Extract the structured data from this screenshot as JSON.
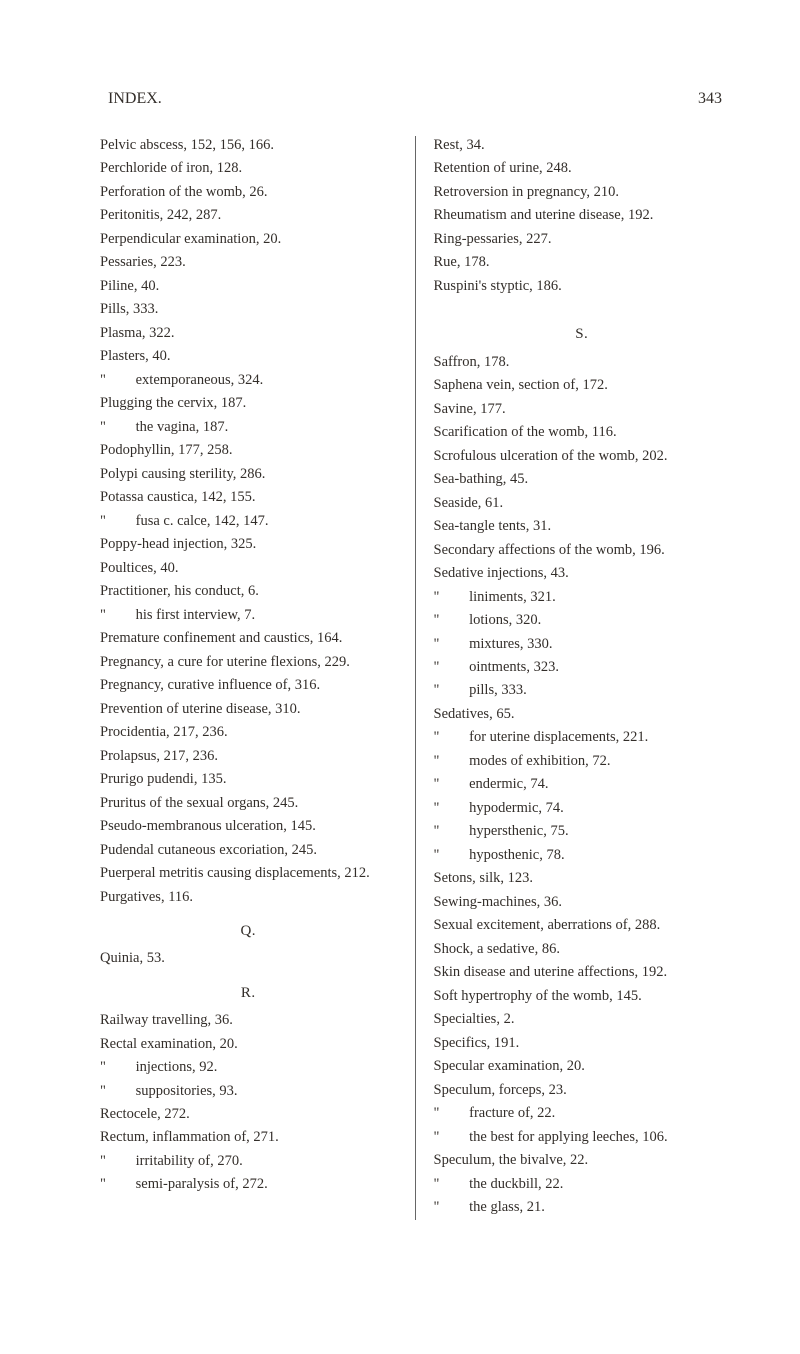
{
  "header": {
    "title": "INDEX.",
    "page_number": "343"
  },
  "columns": {
    "left": [
      {
        "type": "entry",
        "text": "Pelvic abscess, 152, 156, 166."
      },
      {
        "type": "entry",
        "text": "Perchloride of iron, 128."
      },
      {
        "type": "entry",
        "text": "Perforation of the womb, 26."
      },
      {
        "type": "entry",
        "text": "Peritonitis, 242, 287."
      },
      {
        "type": "entry",
        "text": "Perpendicular examination, 20."
      },
      {
        "type": "entry",
        "text": "Pessaries, 223."
      },
      {
        "type": "entry",
        "text": "Piline, 40."
      },
      {
        "type": "entry",
        "text": "Pills, 333."
      },
      {
        "type": "entry",
        "text": "Plasma, 322."
      },
      {
        "type": "entry",
        "text": "Plasters, 40."
      },
      {
        "type": "sub",
        "text": "extemporaneous, 324."
      },
      {
        "type": "entry",
        "text": "Plugging the cervix, 187."
      },
      {
        "type": "sub",
        "text": "the vagina, 187."
      },
      {
        "type": "entry",
        "text": "Podophyllin, 177, 258."
      },
      {
        "type": "entry",
        "text": "Polypi causing sterility, 286."
      },
      {
        "type": "entry",
        "text": "Potassa caustica, 142, 155."
      },
      {
        "type": "sub",
        "text": "fusa c. calce, 142, 147."
      },
      {
        "type": "entry",
        "text": "Poppy-head injection, 325."
      },
      {
        "type": "entry",
        "text": "Poultices, 40."
      },
      {
        "type": "entry",
        "text": "Practitioner, his conduct, 6."
      },
      {
        "type": "sub",
        "text": "his first interview, 7."
      },
      {
        "type": "entry",
        "text": "Premature confinement and caustics, 164."
      },
      {
        "type": "entry",
        "text": "Pregnancy, a cure for uterine flexions, 229."
      },
      {
        "type": "entry",
        "text": "Pregnancy, curative influence of, 316."
      },
      {
        "type": "entry",
        "text": "Prevention of uterine disease, 310."
      },
      {
        "type": "entry",
        "text": "Procidentia, 217, 236."
      },
      {
        "type": "entry",
        "text": "Prolapsus, 217, 236."
      },
      {
        "type": "entry",
        "text": "Prurigo pudendi, 135."
      },
      {
        "type": "entry",
        "text": "Pruritus of the sexual organs, 245."
      },
      {
        "type": "entry",
        "text": "Pseudo-membranous ulceration, 145."
      },
      {
        "type": "entry",
        "text": "Pudendal cutaneous excoriation, 245."
      },
      {
        "type": "entry",
        "text": "Puerperal metritis causing displacements, 212."
      },
      {
        "type": "entry",
        "text": "Purgatives, 116."
      },
      {
        "type": "section",
        "text": "Q."
      },
      {
        "type": "entry",
        "text": "Quinia, 53."
      },
      {
        "type": "section",
        "text": "R."
      },
      {
        "type": "entry",
        "text": "Railway travelling, 36."
      },
      {
        "type": "entry",
        "text": "Rectal examination, 20."
      },
      {
        "type": "sub",
        "text": "injections, 92."
      },
      {
        "type": "sub",
        "text": "suppositories, 93."
      },
      {
        "type": "entry",
        "text": "Rectocele, 272."
      },
      {
        "type": "entry",
        "text": "Rectum, inflammation of, 271."
      },
      {
        "type": "sub",
        "text": "irritability of, 270."
      },
      {
        "type": "sub",
        "text": "semi-paralysis of, 272."
      }
    ],
    "right": [
      {
        "type": "entry",
        "text": "Rest, 34."
      },
      {
        "type": "entry",
        "text": "Retention of urine, 248."
      },
      {
        "type": "entry",
        "text": "Retroversion in pregnancy, 210."
      },
      {
        "type": "entry",
        "text": "Rheumatism and uterine disease, 192."
      },
      {
        "type": "entry",
        "text": "Ring-pessaries, 227."
      },
      {
        "type": "entry",
        "text": "Rue, 178."
      },
      {
        "type": "entry",
        "text": "Ruspini's styptic, 186."
      },
      {
        "type": "gap",
        "text": ""
      },
      {
        "type": "section",
        "text": "S."
      },
      {
        "type": "entry",
        "text": "Saffron, 178."
      },
      {
        "type": "entry",
        "text": "Saphena vein, section of, 172."
      },
      {
        "type": "entry",
        "text": "Savine, 177."
      },
      {
        "type": "entry",
        "text": "Scarification of the womb, 116."
      },
      {
        "type": "entry",
        "text": "Scrofulous ulceration of the womb, 202."
      },
      {
        "type": "entry",
        "text": "Sea-bathing, 45."
      },
      {
        "type": "entry",
        "text": "Seaside, 61."
      },
      {
        "type": "entry",
        "text": "Sea-tangle tents, 31."
      },
      {
        "type": "entry",
        "text": "Secondary affections of the womb, 196."
      },
      {
        "type": "entry",
        "text": "Sedative injections, 43."
      },
      {
        "type": "sub",
        "text": "liniments, 321."
      },
      {
        "type": "sub",
        "text": "lotions, 320."
      },
      {
        "type": "sub",
        "text": "mixtures, 330."
      },
      {
        "type": "sub",
        "text": "ointments, 323."
      },
      {
        "type": "sub",
        "text": "pills, 333."
      },
      {
        "type": "entry",
        "text": "Sedatives, 65."
      },
      {
        "type": "sub",
        "text": "for uterine displacements, 221."
      },
      {
        "type": "sub",
        "text": "modes of exhibition, 72."
      },
      {
        "type": "sub",
        "text": "endermic, 74."
      },
      {
        "type": "sub",
        "text": "hypodermic, 74."
      },
      {
        "type": "sub",
        "text": "hypersthenic, 75."
      },
      {
        "type": "sub",
        "text": "hyposthenic, 78."
      },
      {
        "type": "entry",
        "text": "Setons, silk, 123."
      },
      {
        "type": "entry",
        "text": "Sewing-machines, 36."
      },
      {
        "type": "entry",
        "text": "Sexual excitement, aberrations of, 288."
      },
      {
        "type": "entry",
        "text": "Shock, a sedative, 86."
      },
      {
        "type": "entry",
        "text": "Skin disease and uterine affections, 192."
      },
      {
        "type": "entry",
        "text": "Soft hypertrophy of the womb, 145."
      },
      {
        "type": "entry",
        "text": "Specialties, 2."
      },
      {
        "type": "entry",
        "text": "Specifics, 191."
      },
      {
        "type": "entry",
        "text": "Specular examination, 20."
      },
      {
        "type": "entry",
        "text": "Speculum, forceps, 23."
      },
      {
        "type": "sub",
        "text": "fracture of, 22."
      },
      {
        "type": "sub",
        "text": "the best for applying leeches, 106."
      },
      {
        "type": "entry",
        "text": "Speculum, the bivalve, 22."
      },
      {
        "type": "sub",
        "text": "the duckbill, 22."
      },
      {
        "type": "sub",
        "text": "the glass, 21."
      }
    ]
  },
  "ditto_mark": "\""
}
